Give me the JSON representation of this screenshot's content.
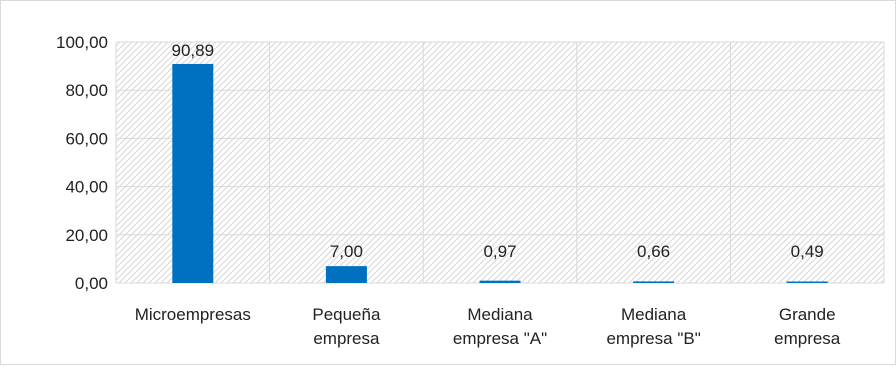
{
  "chart_data": {
    "type": "bar",
    "title": "",
    "xlabel": "",
    "ylabel": "",
    "categories": [
      [
        "Microempresas"
      ],
      [
        "Pequeña",
        "empresa"
      ],
      [
        "Mediana",
        "empresa \"A\""
      ],
      [
        "Mediana",
        "empresa \"B\""
      ],
      [
        "Grande",
        "empresa"
      ]
    ],
    "values": [
      90.89,
      7.0,
      0.97,
      0.66,
      0.49
    ],
    "value_labels": [
      "90,89",
      "7,00",
      "0,97",
      "0,66",
      "0,49"
    ],
    "ylim": [
      0,
      100
    ],
    "yticks": [
      0,
      20,
      40,
      60,
      80,
      100
    ],
    "ytick_labels": [
      "0,00",
      "20,00",
      "40,00",
      "60,00",
      "80,00",
      "100,00"
    ],
    "grid": true,
    "legend": "none",
    "colors": {
      "bar": "#0070c0",
      "grid": "#d9d9d9",
      "hatch": "#d6d6d6",
      "border": "#d9d9d9"
    }
  }
}
